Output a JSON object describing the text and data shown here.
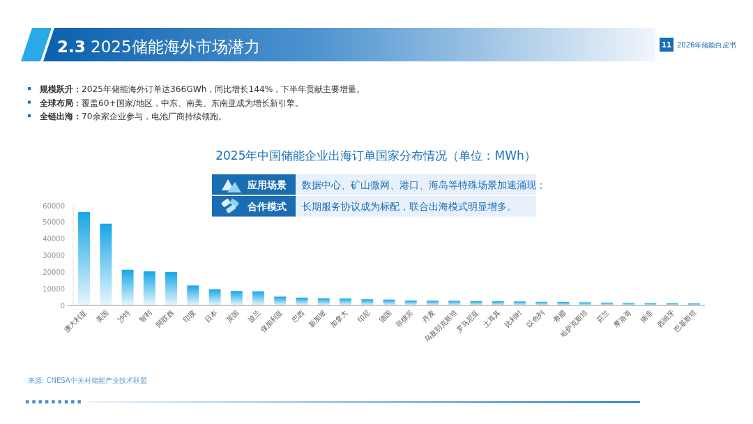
{
  "chart_data": {
    "type": "bar",
    "title": "2025年中国储能企业出海订单国家分布情况（单位：MWh）",
    "categories": [
      "澳大利亚",
      "美国",
      "沙特",
      "智利",
      "阿联酋",
      "印度",
      "日本",
      "英国",
      "波兰",
      "保加利亚",
      "巴西",
      "新加坡",
      "加拿大",
      "印尼",
      "德国",
      "菲律宾",
      "丹麦",
      "乌兹别克斯坦",
      "罗马尼亚",
      "土耳其",
      "比利时",
      "以色列",
      "希腊",
      "哈萨克斯坦",
      "芬兰",
      "摩洛哥",
      "南非",
      "西班牙",
      "巴基斯坦"
    ],
    "values": [
      56200,
      49200,
      21500,
      20500,
      20100,
      12000,
      9700,
      8700,
      8500,
      5300,
      4700,
      4300,
      4200,
      3700,
      3500,
      3000,
      2900,
      2800,
      2600,
      2500,
      2400,
      2200,
      2100,
      1900,
      1700,
      1500,
      1400,
      1300,
      1200
    ],
    "color": "#16a6e6",
    "ylim": [
      0,
      60000
    ],
    "yticks": [
      0,
      10000,
      20000,
      30000,
      40000,
      50000,
      60000
    ],
    "annotations": [
      "**2.3** 2025储能海外市场潜力",
      "11",
      "2026年储能白皮书",
      "**规模跃升：**2025年储能海外订单达366GWh，同比增长144%，下半年贡献主要增量。",
      "**全球布局：**覆盖60+国家/地区，中东、南美、东南亚成为增长新引擎。",
      "**全链出海：**70余家企业参与，电池厂商持续领跑。",
      "应用场景",
      "数据中心、矿山微网、港口、海岛等特殊场景加速涌现；",
      "合作模式",
      "长期服务协议成为标配，联合出海模式明显增多。",
      "来源: CNESA中关村储能产业技术联盟"
    ]
  }
}
